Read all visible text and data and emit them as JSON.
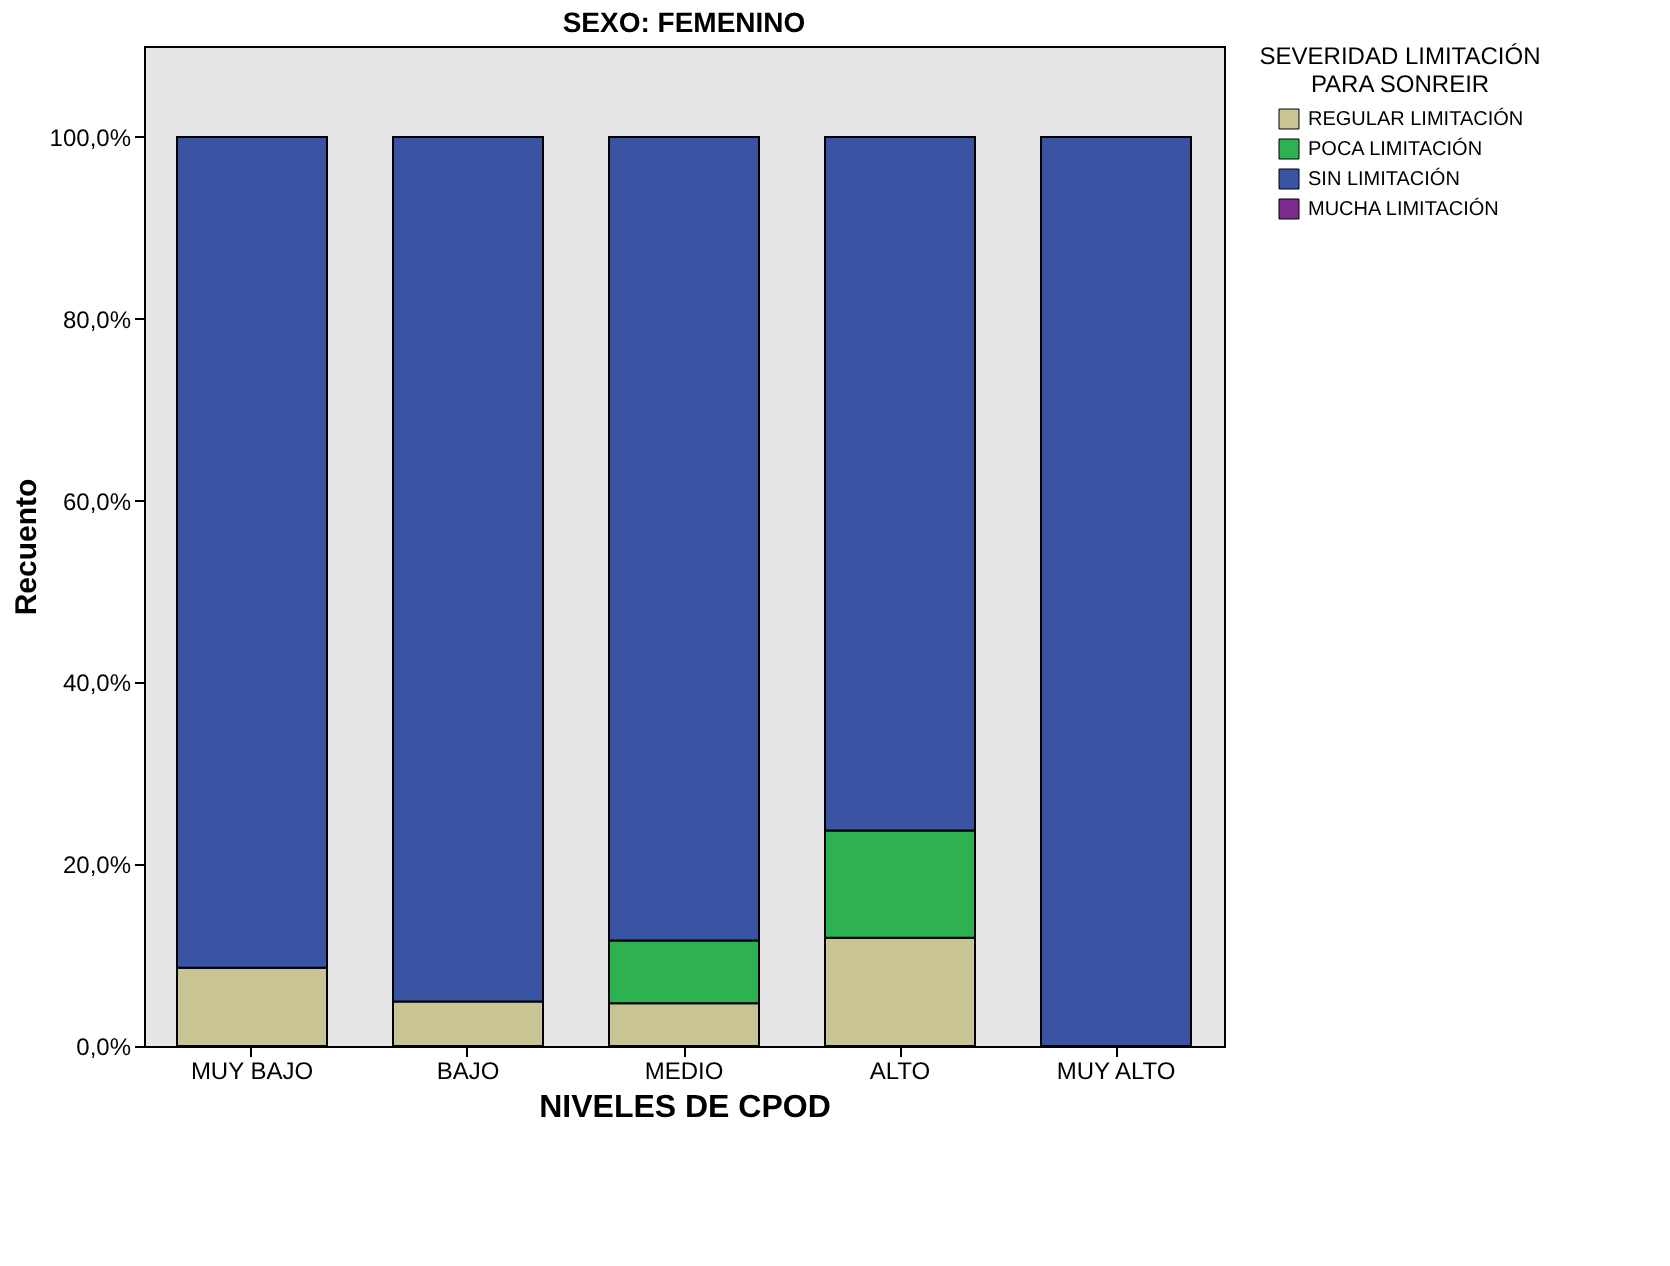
{
  "chart_data": {
    "type": "bar",
    "title": "SEXO: FEMENINO",
    "xlabel": "NIVELES DE CPOD",
    "ylabel": "Recuento",
    "legend_title": "SEVERIDAD LIMITACIÓN PARA SONREIR",
    "categories": [
      "MUY BAJO",
      "BAJO",
      "MEDIO",
      "ALTO",
      "MUY ALTO"
    ],
    "stacked": true,
    "series": [
      {
        "name": "REGULAR LIMITACIÓN",
        "color": "#c8c493",
        "values": [
          8.6,
          4.9,
          4.7,
          11.9,
          0
        ]
      },
      {
        "name": "POCA LIMITACIÓN",
        "color": "#2db151",
        "values": [
          0,
          0,
          6.9,
          11.8,
          0
        ]
      },
      {
        "name": "SIN LIMITACIÓN",
        "color": "#3a54a4",
        "values": [
          91.4,
          95.1,
          88.4,
          76.3,
          100
        ]
      },
      {
        "name": "MUCHA LIMITACIÓN",
        "color": "#7b2c8e",
        "values": [
          0,
          0,
          0,
          0,
          0
        ]
      }
    ],
    "ylim": [
      0,
      110
    ],
    "yticks": [
      {
        "value": 0,
        "label": "0,0%"
      },
      {
        "value": 20,
        "label": "20,0%"
      },
      {
        "value": 40,
        "label": "40,0%"
      },
      {
        "value": 60,
        "label": "60,0%"
      },
      {
        "value": 80,
        "label": "80,0%"
      },
      {
        "value": 100,
        "label": "100,0%"
      }
    ],
    "grid": false,
    "legend": "top right"
  }
}
